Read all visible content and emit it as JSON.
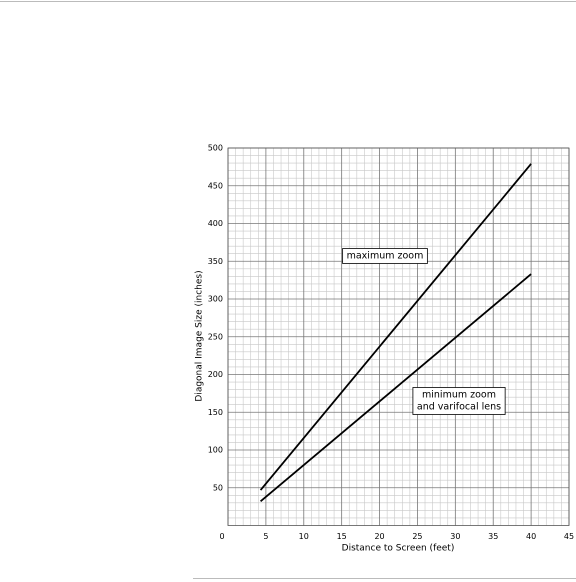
{
  "chart_data": {
    "type": "line",
    "x_label": "Distance to Screen (feet)",
    "y_label": "Diagonal Image Size (inches)",
    "x": [
      4.3,
      40
    ],
    "series": [
      {
        "name": "maximum zoom",
        "color": "#000000",
        "values": [
          47,
          479
        ]
      },
      {
        "name": "minimum zoom and varifocal lens",
        "color": "#000000",
        "values": [
          32,
          333
        ]
      }
    ],
    "annotations": [
      [
        "maximum zoom"
      ],
      [
        "minimum zoom",
        "and varifocal lens"
      ]
    ],
    "xlim": [
      0,
      45
    ],
    "xticks": [
      0,
      5,
      10,
      15,
      20,
      25,
      30,
      35,
      40,
      45
    ],
    "ylim": [
      0,
      500
    ],
    "yticks": [
      50,
      100,
      150,
      200,
      250,
      300,
      350,
      400,
      450,
      500
    ],
    "grid": true
  }
}
